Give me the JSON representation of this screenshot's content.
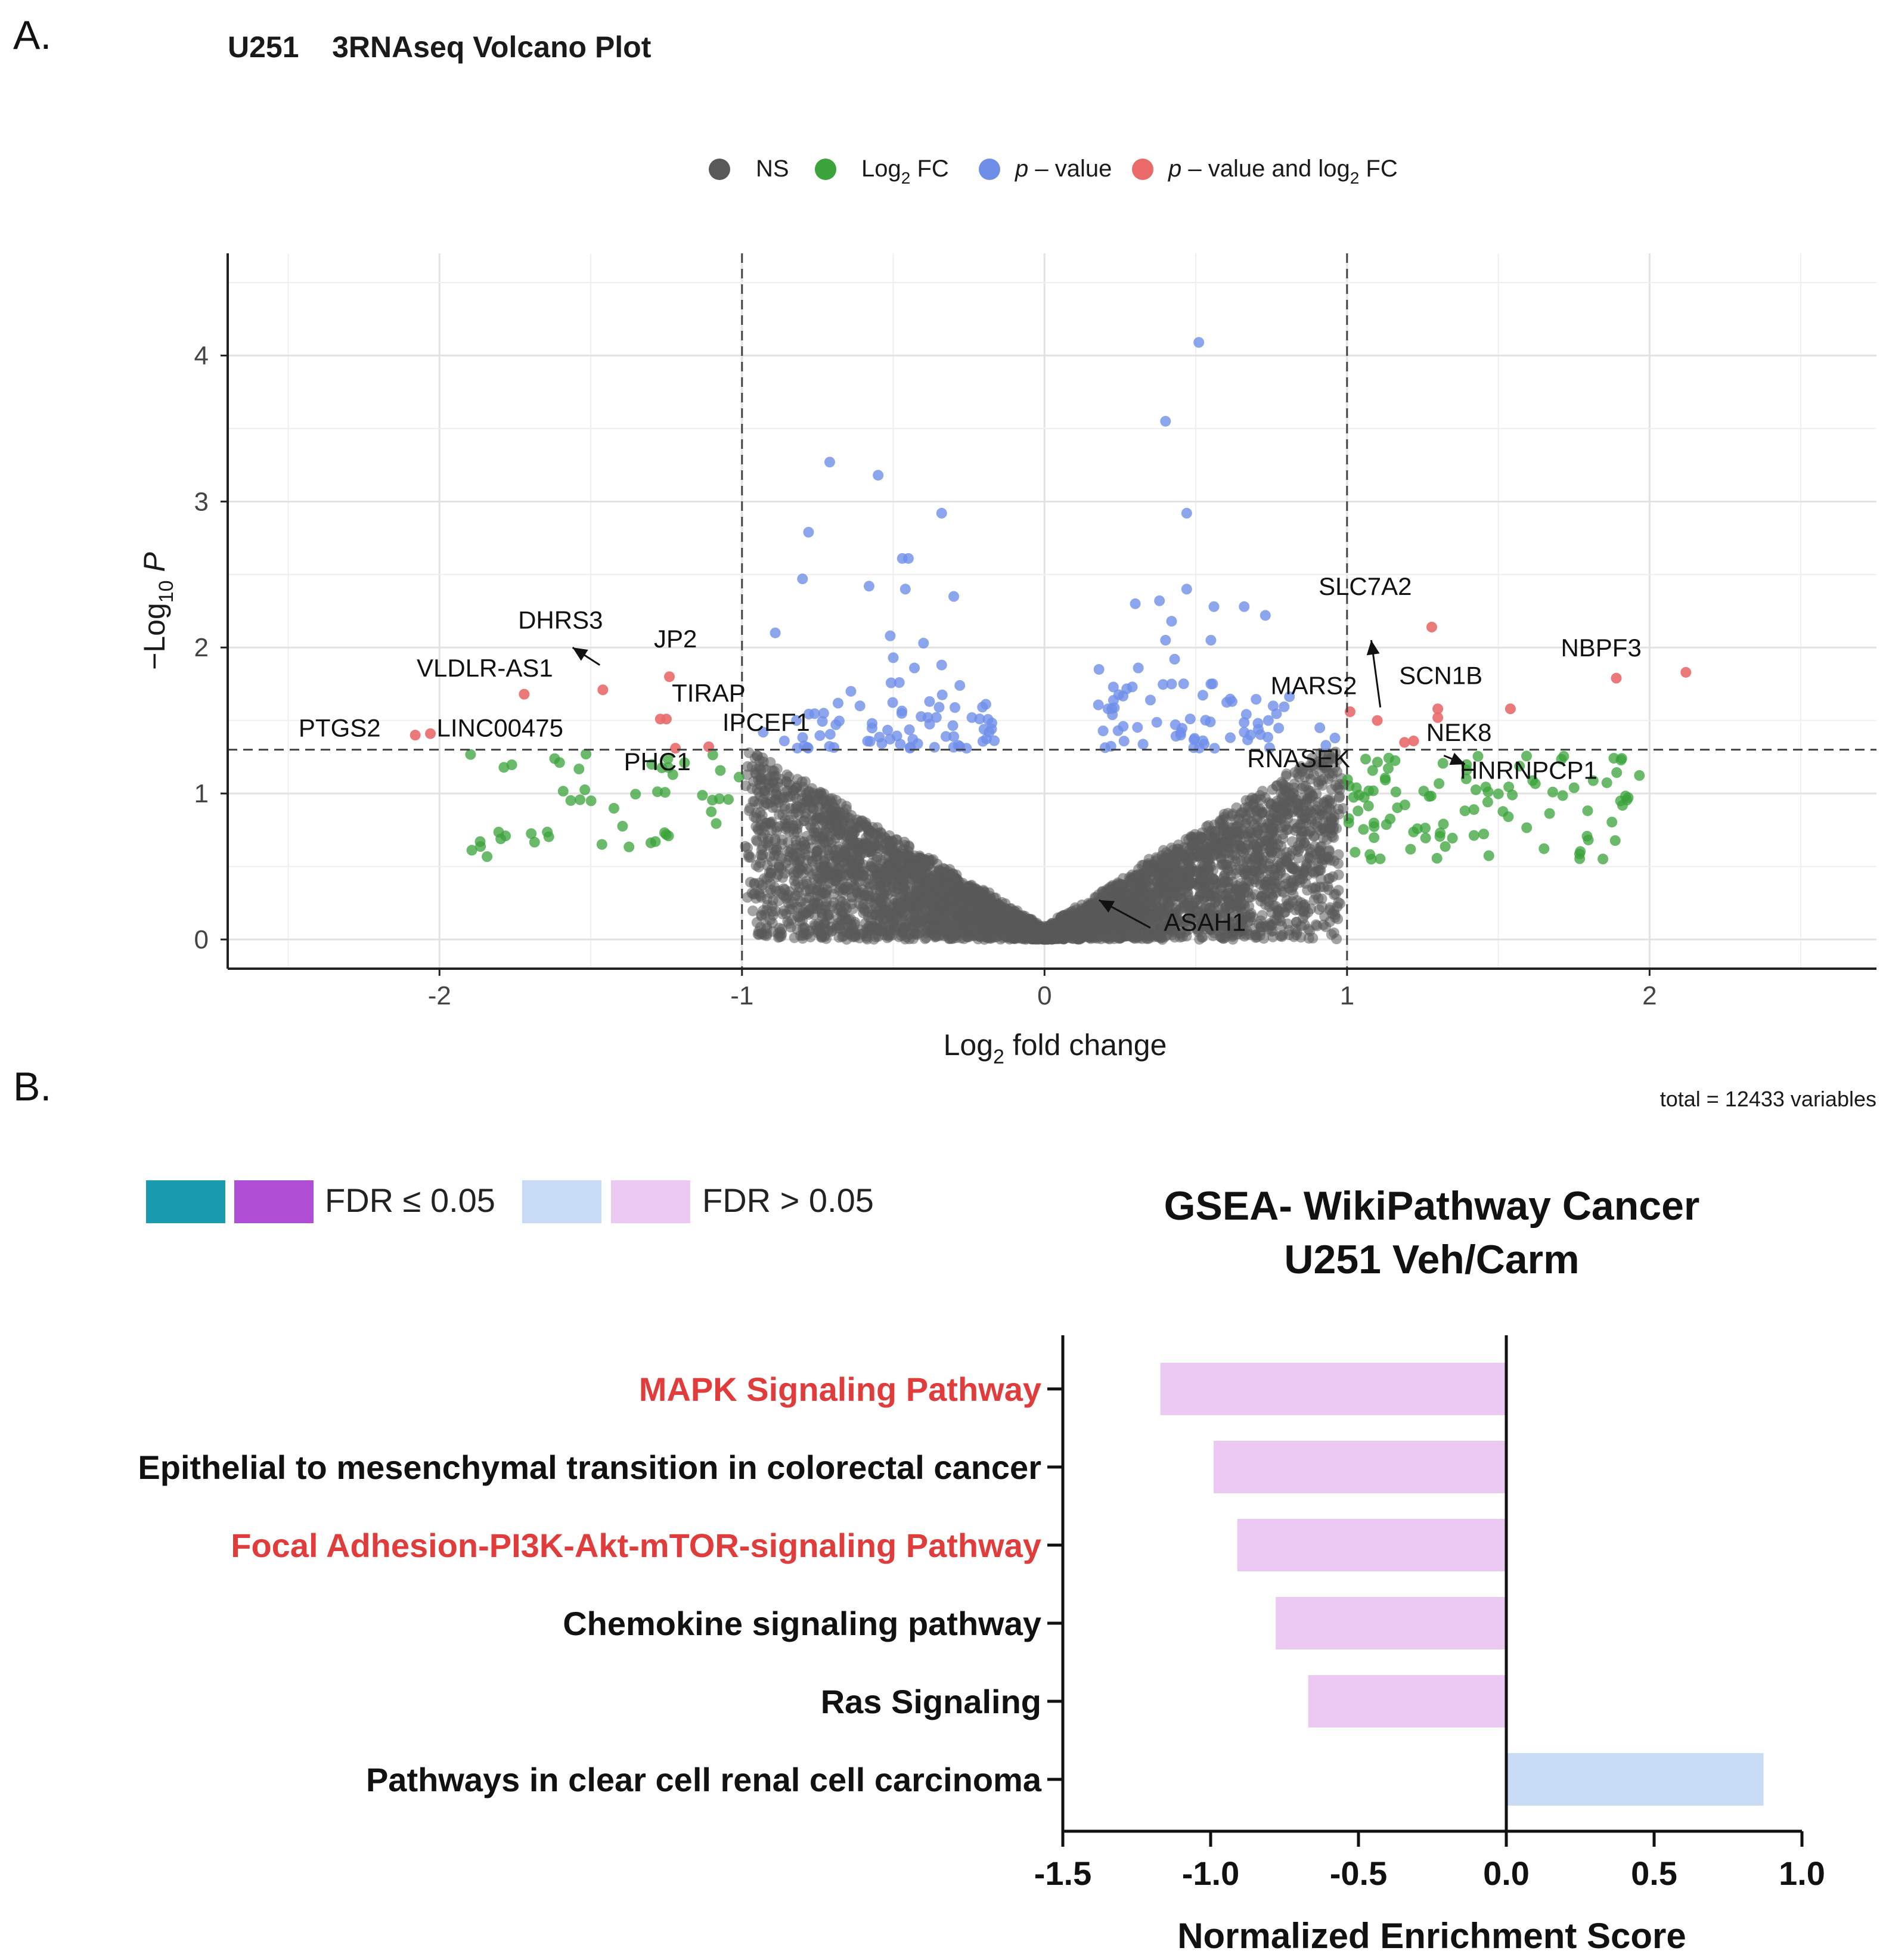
{
  "panel_a_label": "A.",
  "panel_b_label": "B.",
  "colors": {
    "ns": "#595959",
    "log2fc": "#3aa33a",
    "pvalue": "#6f8ee8",
    "both": "#ea6a6a",
    "fdr_sig_teal": "#1a9bb0",
    "fdr_sig_purple": "#b04fd6",
    "fdr_ns_blue": "#c8dcf5",
    "fdr_ns_pink": "#ebc9f3",
    "highlight_label": "#e03c3c"
  },
  "chart_data": [
    {
      "type": "scatter",
      "subtype": "volcano",
      "title": "U251    3RNAseq Volcano Plot",
      "xlabel": "Log2 fold change",
      "xlabel_main": "Log",
      "xlabel_sub": "2",
      "xlabel_rest": " fold change",
      "ylabel_main": "−Log",
      "ylabel_sub": "10",
      "ylabel_rest": " P",
      "xlim": [
        -2.7,
        2.75
      ],
      "ylim": [
        -0.2,
        4.7
      ],
      "xticks": [
        -2,
        -1,
        0,
        1,
        2
      ],
      "xtick_labels": [
        "-2",
        "-1",
        "0",
        "1",
        "2"
      ],
      "yticks": [
        0,
        1,
        2,
        3,
        4
      ],
      "ytick_labels": [
        "0",
        "1",
        "2",
        "3",
        "4"
      ],
      "fc_cutoff": 1,
      "p_cutoff": 1.3,
      "grid": true,
      "caption": "total = 12433 variables",
      "total_variables": 12433,
      "legend": {
        "position": "top",
        "entries": [
          {
            "key": "ns",
            "label": "NS"
          },
          {
            "key": "log2fc",
            "label": "Log2 FC",
            "main": "Log",
            "sub": "2",
            "rest": " FC"
          },
          {
            "key": "pvalue",
            "label": "p – value",
            "italic": "p",
            "rest": " – value"
          },
          {
            "key": "both",
            "label": "p – value and log2 FC",
            "italic": "p",
            "rest": " – value and log",
            "sub": "2",
            "rest2": " FC"
          }
        ]
      },
      "significant_points": [
        {
          "x": -2.08,
          "y": 1.4
        },
        {
          "x": -2.03,
          "y": 1.41
        },
        {
          "x": -1.72,
          "y": 1.68
        },
        {
          "x": -1.46,
          "y": 1.71
        },
        {
          "x": -1.27,
          "y": 1.51
        },
        {
          "x": -1.25,
          "y": 1.51
        },
        {
          "x": -1.24,
          "y": 1.8
        },
        {
          "x": -1.22,
          "y": 1.31
        },
        {
          "x": -1.11,
          "y": 1.32
        },
        {
          "x": 1.01,
          "y": 1.56
        },
        {
          "x": 1.1,
          "y": 1.5
        },
        {
          "x": 1.19,
          "y": 1.35
        },
        {
          "x": 1.22,
          "y": 1.36
        },
        {
          "x": 1.28,
          "y": 2.14
        },
        {
          "x": 1.3,
          "y": 1.58
        },
        {
          "x": 1.3,
          "y": 1.52
        },
        {
          "x": 1.54,
          "y": 1.58
        },
        {
          "x": 1.89,
          "y": 1.79
        },
        {
          "x": 2.12,
          "y": 1.83
        }
      ],
      "pvalue_points": [
        {
          "x": 0.51,
          "y": 4.09
        },
        {
          "x": 0.4,
          "y": 3.55
        },
        {
          "x": -0.71,
          "y": 3.27
        },
        {
          "x": -0.55,
          "y": 3.18
        },
        {
          "x": -0.34,
          "y": 2.92
        },
        {
          "x": 0.47,
          "y": 2.92
        },
        {
          "x": -0.78,
          "y": 2.79
        },
        {
          "x": -0.45,
          "y": 2.61
        },
        {
          "x": -0.47,
          "y": 2.61
        },
        {
          "x": -0.8,
          "y": 2.47
        },
        {
          "x": -0.58,
          "y": 2.42
        },
        {
          "x": -0.46,
          "y": 2.4
        },
        {
          "x": -0.3,
          "y": 2.35
        },
        {
          "x": 0.47,
          "y": 2.4
        },
        {
          "x": 0.38,
          "y": 2.32
        },
        {
          "x": 0.56,
          "y": 2.28
        },
        {
          "x": 0.66,
          "y": 2.28
        },
        {
          "x": 0.3,
          "y": 2.3
        },
        {
          "x": 0.42,
          "y": 2.18
        },
        {
          "x": 0.73,
          "y": 2.22
        },
        {
          "x": -0.89,
          "y": 2.1
        },
        {
          "x": -0.51,
          "y": 2.08
        },
        {
          "x": -0.4,
          "y": 2.03
        },
        {
          "x": 0.4,
          "y": 2.05
        },
        {
          "x": 0.55,
          "y": 2.05
        },
        {
          "x": -0.5,
          "y": 1.93
        },
        {
          "x": -0.34,
          "y": 1.88
        },
        {
          "x": -0.43,
          "y": 1.86
        },
        {
          "x": 0.43,
          "y": 1.92
        },
        {
          "x": 0.31,
          "y": 1.86
        },
        {
          "x": 0.18,
          "y": 1.85
        },
        {
          "x": -0.64,
          "y": 1.7
        },
        {
          "x": -0.28,
          "y": 1.74
        },
        {
          "x": -0.48,
          "y": 1.76
        },
        {
          "x": 0.29,
          "y": 1.73
        },
        {
          "x": 0.42,
          "y": 1.75
        },
        {
          "x": 0.55,
          "y": 1.75
        },
        {
          "x": -0.82,
          "y": 1.5
        },
        {
          "x": -0.73,
          "y": 1.55
        },
        {
          "x": -0.93,
          "y": 1.42
        },
        {
          "x": -0.86,
          "y": 1.36
        },
        {
          "x": 0.91,
          "y": 1.45
        },
        {
          "x": 0.93,
          "y": 1.33
        },
        {
          "x": 0.96,
          "y": 1.38
        },
        {
          "x": 0.74,
          "y": 1.5
        },
        {
          "x": 0.66,
          "y": 1.42
        },
        {
          "x": -0.57,
          "y": 1.48
        },
        {
          "x": -0.24,
          "y": 1.52
        },
        {
          "x": 0.21,
          "y": 1.58
        },
        {
          "x": -0.61,
          "y": 1.6
        },
        {
          "x": 0.62,
          "y": 1.63
        },
        {
          "x": -0.38,
          "y": 1.63
        },
        {
          "x": 0.35,
          "y": 1.64
        },
        {
          "x": -0.2,
          "y": 1.44
        },
        {
          "x": 0.26,
          "y": 1.46
        },
        {
          "x": -0.3,
          "y": 1.39
        },
        {
          "x": 0.45,
          "y": 1.4
        }
      ],
      "labels": [
        {
          "text": "DHRS3",
          "x": -1.6,
          "y": 2.13
        },
        {
          "text": "VLDLR-AS1",
          "x": -1.85,
          "y": 1.8
        },
        {
          "text": "JP2",
          "x": -1.22,
          "y": 2.0
        },
        {
          "text": "TIRAP",
          "x": -1.11,
          "y": 1.63
        },
        {
          "text": "IPCEF1",
          "x": -0.92,
          "y": 1.43
        },
        {
          "text": "PTGS2",
          "x": -2.33,
          "y": 1.39
        },
        {
          "text": "LINC00475",
          "x": -1.8,
          "y": 1.39
        },
        {
          "text": "PHC1",
          "x": -1.28,
          "y": 1.16
        },
        {
          "text": "ASAH1",
          "x": 0.53,
          "y": 0.06
        },
        {
          "text": "SLC7A2",
          "x": 1.06,
          "y": 2.36
        },
        {
          "text": "MARS2",
          "x": 0.89,
          "y": 1.68
        },
        {
          "text": "SCN1B",
          "x": 1.31,
          "y": 1.75
        },
        {
          "text": "NBPF3",
          "x": 1.84,
          "y": 1.94
        },
        {
          "text": "NEK8",
          "x": 1.37,
          "y": 1.36
        },
        {
          "text": "RNASEK",
          "x": 0.84,
          "y": 1.18
        },
        {
          "text": "HNRNPCP1",
          "x": 1.6,
          "y": 1.1
        }
      ],
      "arrows": [
        {
          "from": [
            -1.47,
            1.88
          ],
          "to": [
            -1.56,
            2.0
          ]
        },
        {
          "from": [
            1.11,
            1.59
          ],
          "to": [
            1.08,
            2.05
          ]
        },
        {
          "from": [
            1.32,
            1.26
          ],
          "to": [
            1.39,
            1.2
          ]
        },
        {
          "from": [
            0.35,
            0.08
          ],
          "to": [
            0.18,
            0.27
          ]
        }
      ]
    },
    {
      "type": "bar",
      "orientation": "horizontal",
      "title": "GSEA- WikiPathway Cancer",
      "subtitle": "U251 Veh/Carm",
      "xlabel": "Normalized Enrichment Score",
      "xlim": [
        -1.5,
        1.0
      ],
      "xticks": [
        -1.5,
        -1.0,
        -0.5,
        0.0,
        0.5,
        1.0
      ],
      "xtick_labels": [
        "-1.5",
        "-1.0",
        "-0.5",
        "0.0",
        "0.5",
        "1.0"
      ],
      "categories": [
        "MAPK  Signaling Pathway",
        "Epithelial to mesenchymal transition in colorectal cancer",
        "Focal Adhesion-PI3K-Akt-mTOR-signaling Pathway",
        "Chemokine signaling pathway",
        "Ras Signaling",
        "Pathways in clear cell renal cell carcinoma"
      ],
      "values": [
        -1.17,
        -0.99,
        -0.91,
        -0.78,
        -0.67,
        0.87
      ],
      "highlighted": [
        true,
        false,
        true,
        false,
        false,
        false
      ],
      "legend": {
        "position": "top-left",
        "entries": [
          {
            "label": "FDR ≤ 0.05",
            "colors": [
              "fdr_sig_teal",
              "fdr_sig_purple"
            ]
          },
          {
            "label": "FDR > 0.05",
            "colors": [
              "fdr_ns_blue",
              "fdr_ns_pink"
            ]
          }
        ]
      }
    }
  ]
}
